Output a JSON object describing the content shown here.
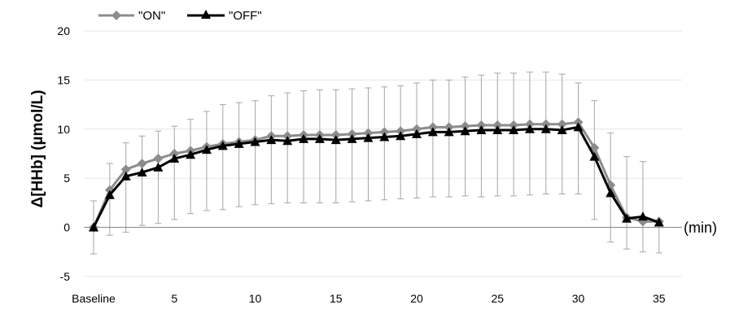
{
  "chart_data": {
    "type": "line",
    "xlabel": "(min)",
    "ylabel": "Δ[HHb] (µmol/L)",
    "ylim": [
      -5,
      20
    ],
    "yticks": [
      -5,
      0,
      5,
      10,
      15,
      20
    ],
    "xlim": [
      0,
      36
    ],
    "xticks": [
      {
        "x": 0,
        "label": "Baseline"
      },
      {
        "x": 5,
        "label": "5"
      },
      {
        "x": 10,
        "label": "10"
      },
      {
        "x": 15,
        "label": "15"
      },
      {
        "x": 20,
        "label": "20"
      },
      {
        "x": 25,
        "label": "25"
      },
      {
        "x": 30,
        "label": "30"
      },
      {
        "x": 35,
        "label": "35"
      }
    ],
    "grid": true,
    "legend_position": "top-left",
    "x": [
      0,
      1,
      2,
      3,
      4,
      5,
      6,
      7,
      8,
      9,
      10,
      11,
      12,
      13,
      14,
      15,
      16,
      17,
      18,
      19,
      20,
      21,
      22,
      23,
      24,
      25,
      26,
      27,
      28,
      29,
      30,
      31,
      32,
      33,
      34,
      35
    ],
    "series": [
      {
        "name": "\"ON\"",
        "color": "#8c8c8c",
        "marker": "diamond",
        "values": [
          0,
          3.8,
          5.9,
          6.5,
          7.0,
          7.5,
          7.8,
          8.2,
          8.5,
          8.7,
          8.9,
          9.3,
          9.3,
          9.4,
          9.4,
          9.4,
          9.5,
          9.6,
          9.7,
          9.8,
          10.0,
          10.2,
          10.2,
          10.3,
          10.4,
          10.4,
          10.4,
          10.5,
          10.5,
          10.5,
          10.7,
          8.1,
          4.3,
          1.0,
          0.6,
          0.6
        ],
        "error_upper": [
          2.7,
          6.5,
          8.6,
          9.3,
          9.8,
          10.3,
          11.0,
          11.8,
          12.5,
          12.7,
          12.9,
          13.4,
          13.7,
          13.9,
          14.0,
          14.0,
          14.1,
          14.2,
          14.3,
          14.4,
          14.7,
          15.0,
          15.0,
          15.3,
          15.5,
          15.7,
          15.7,
          15.8,
          15.8,
          15.6,
          14.7,
          12.9,
          9.6,
          7.2,
          6.7,
          0.7
        ],
        "error_lower": [
          -2.7,
          -0.8,
          -0.5,
          0.2,
          0.4,
          0.8,
          1.4,
          1.7,
          1.8,
          2.1,
          2.3,
          2.4,
          2.5,
          2.5,
          2.5,
          2.5,
          2.6,
          2.7,
          2.8,
          2.9,
          3.0,
          3.1,
          3.1,
          3.2,
          3.1,
          3.2,
          3.2,
          3.3,
          3.4,
          3.4,
          3.4,
          0.8,
          -1.5,
          -2.2,
          -2.5,
          -2.6
        ]
      },
      {
        "name": "\"OFF\"",
        "color": "#000000",
        "marker": "triangle",
        "values": [
          0,
          3.3,
          5.2,
          5.6,
          6.1,
          7.0,
          7.4,
          7.9,
          8.3,
          8.5,
          8.7,
          8.9,
          8.8,
          9.0,
          9.0,
          8.9,
          9.0,
          9.1,
          9.2,
          9.3,
          9.5,
          9.7,
          9.7,
          9.8,
          9.9,
          9.9,
          9.9,
          10.0,
          10.0,
          9.9,
          10.2,
          7.2,
          3.5,
          0.9,
          1.1,
          0.5
        ]
      }
    ]
  }
}
